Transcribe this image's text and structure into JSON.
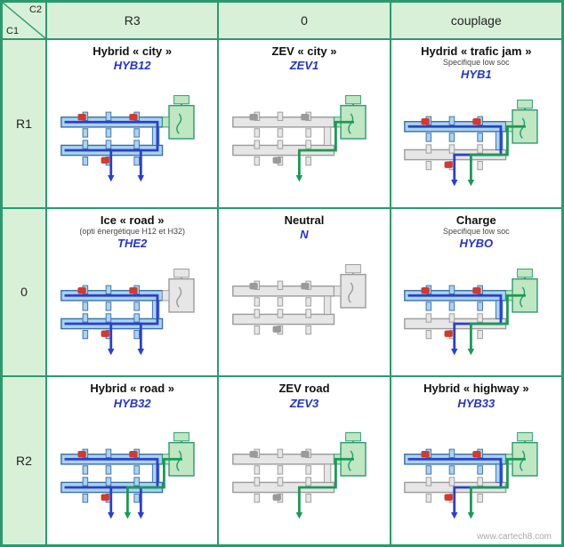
{
  "corner": {
    "c1": "C1",
    "c2": "C2"
  },
  "col_headers": [
    "R3",
    "0",
    "couplage"
  ],
  "row_headers": [
    "R1",
    "0",
    "R2"
  ],
  "cells": [
    [
      {
        "title": "Hybrid « city »",
        "subtitle": "",
        "code": "HYB12",
        "topActive": true,
        "bottomActive": true,
        "motorActive": true,
        "flowTop": true,
        "flowBottom": true
      },
      {
        "title": "ZEV « city »",
        "subtitle": "",
        "code": "ZEV1",
        "topActive": false,
        "bottomActive": false,
        "motorActive": true,
        "flowTop": false,
        "flowBottom": false,
        "flowMotor": true
      },
      {
        "title": "Hydrid « trafic jam »",
        "subtitle": "Specifique low soc",
        "code": "HYB1",
        "topActive": true,
        "bottomActive": false,
        "motorActive": true,
        "flowTop": true,
        "flowBottom": false,
        "flowMotor": true
      }
    ],
    [
      {
        "title": "Ice « road »",
        "subtitle": "(opti énergétique H12 et H32)",
        "code": "THE2",
        "topActive": true,
        "bottomActive": true,
        "motorActive": false,
        "flowTop": true,
        "flowBottom": true
      },
      {
        "title": "Neutral",
        "subtitle": "",
        "code": "N",
        "topActive": false,
        "bottomActive": false,
        "motorActive": false,
        "flowTop": false,
        "flowBottom": false
      },
      {
        "title": "Charge",
        "subtitle": "Specifique low soc",
        "code": "HYBO",
        "topActive": true,
        "bottomActive": false,
        "motorActive": true,
        "flowTop": true,
        "flowBottom": false,
        "flowMotor": true
      }
    ],
    [
      {
        "title": "Hybrid « road »",
        "subtitle": "",
        "code": "HYB32",
        "topActive": true,
        "bottomActive": true,
        "motorActive": true,
        "flowTop": true,
        "flowBottom": true,
        "flowMotor": true
      },
      {
        "title": "ZEV road",
        "subtitle": "",
        "code": "ZEV3",
        "topActive": false,
        "bottomActive": false,
        "motorActive": true,
        "flowTop": false,
        "flowBottom": false,
        "flowMotor": true
      },
      {
        "title": "Hybrid « highway »",
        "subtitle": "",
        "code": "HYB33",
        "topActive": true,
        "bottomActive": false,
        "motorActive": true,
        "flowTop": true,
        "flowBottom": false,
        "flowMotor": true
      }
    ]
  ],
  "colors": {
    "activeShaft": "#a9d4ef",
    "activeShaftStroke": "#3b6ea8",
    "inactiveShaft": "#e6e6e6",
    "inactiveShaftStroke": "#9a9a9a",
    "redClutch": "#d23a2e",
    "motorActive": "#bfe7c2",
    "motorStroke": "#2a9a6e",
    "flowBlue": "#2a3fd0",
    "flowGreen": "#1a9a55"
  },
  "watermark": "www.cartech8.com"
}
